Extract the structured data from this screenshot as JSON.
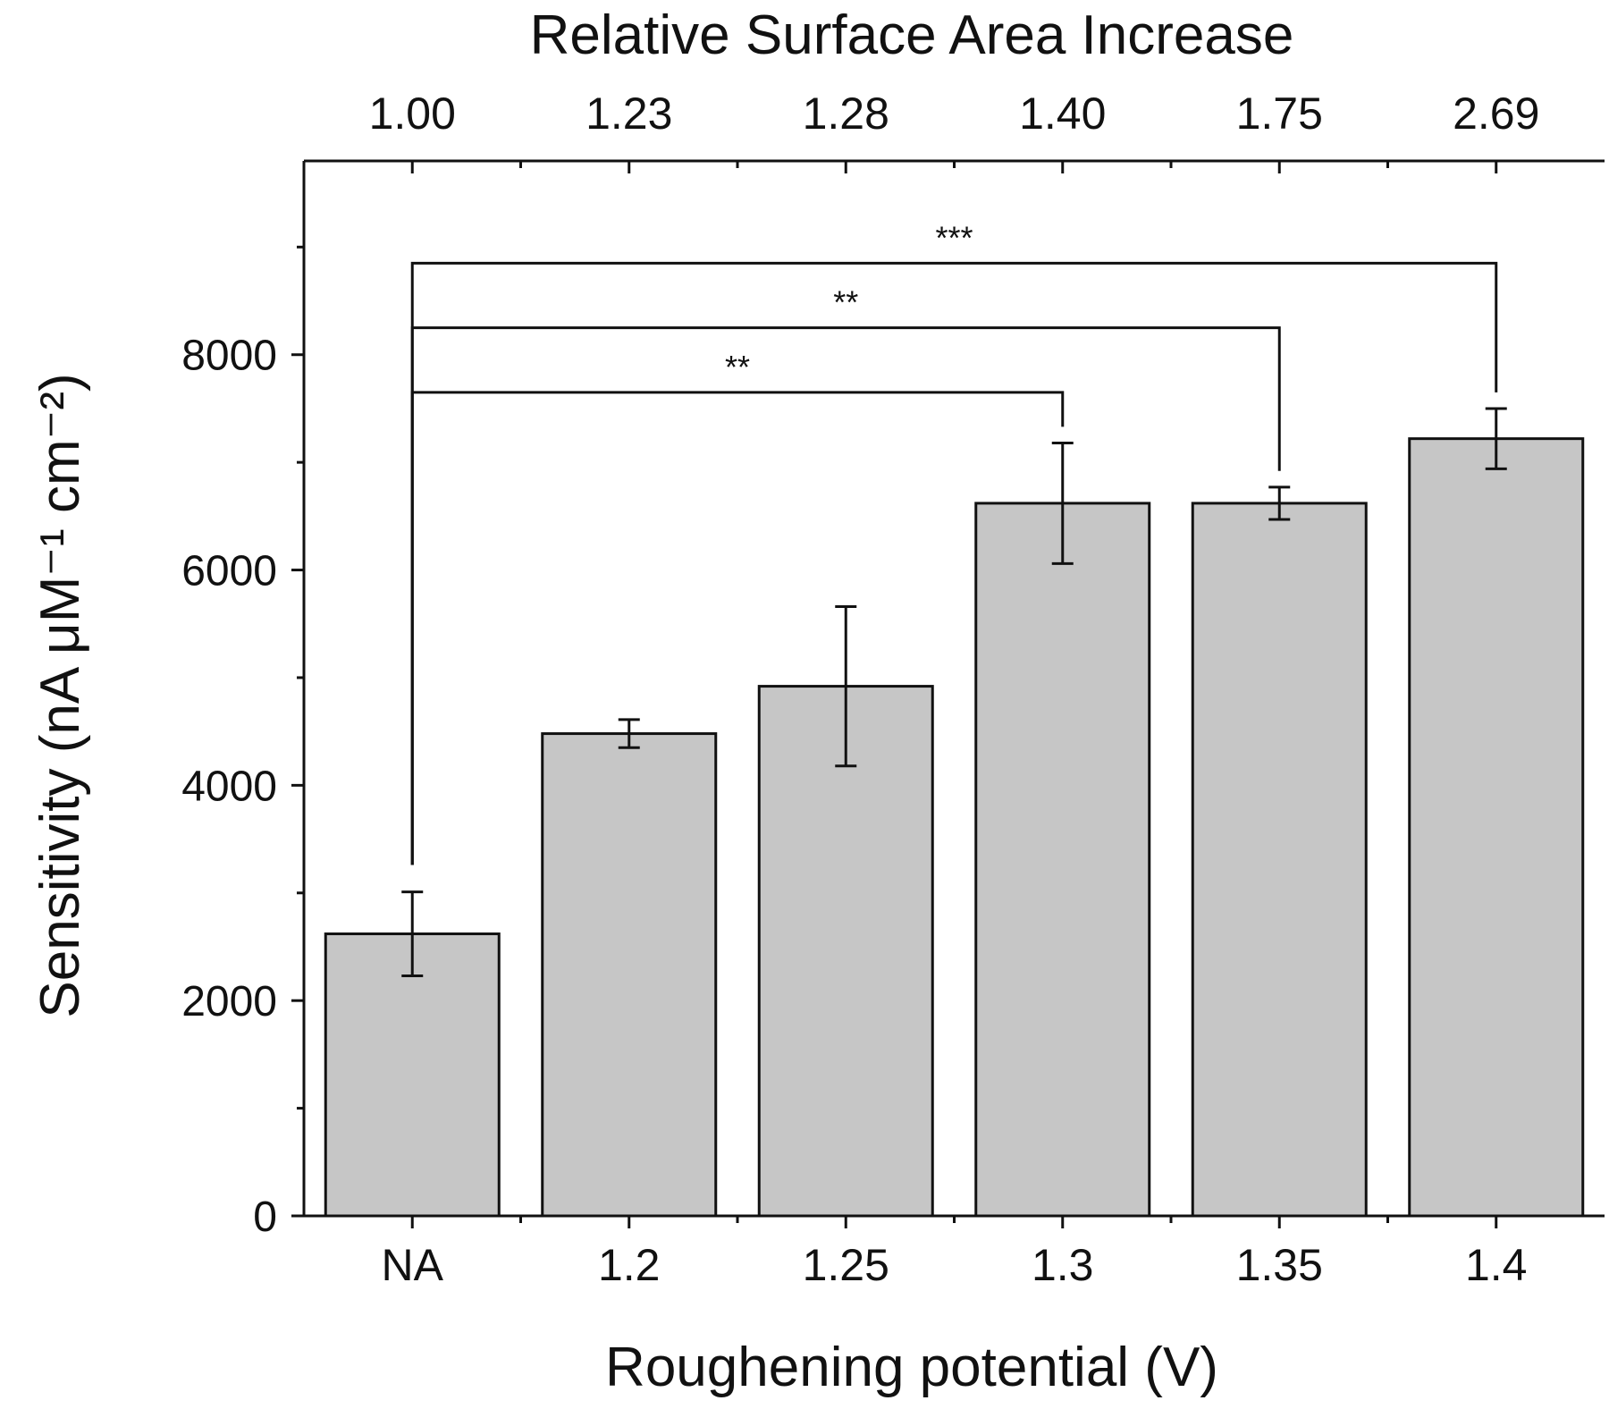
{
  "colors": {
    "bar_fill": "#c6c6c6",
    "bar_stroke": "#111111",
    "axis": "#111111",
    "text": "#111111"
  },
  "chart_data": {
    "type": "bar",
    "title": "",
    "xlabel": "Roughening potential (V)",
    "ylabel": "Sensitivity (nA μM⁻¹ cm⁻²)",
    "top_axis_label": "Relative Surface Area Increase",
    "categories": [
      "NA",
      "1.2",
      "1.25",
      "1.3",
      "1.35",
      "1.4"
    ],
    "top_categories": [
      "1.00",
      "1.23",
      "1.28",
      "1.40",
      "1.75",
      "2.69"
    ],
    "values": [
      2620,
      4480,
      4920,
      6620,
      6620,
      7220
    ],
    "errors": [
      390,
      130,
      740,
      560,
      150,
      280
    ],
    "ylim": [
      0,
      9800
    ],
    "yticks": [
      0,
      2000,
      4000,
      6000,
      8000
    ],
    "significance": [
      {
        "from": 0,
        "to": 3,
        "level": 7650,
        "label": "**"
      },
      {
        "from": 0,
        "to": 4,
        "level": 8250,
        "label": "**"
      },
      {
        "from": 0,
        "to": 5,
        "level": 8850,
        "label": "***"
      }
    ]
  }
}
